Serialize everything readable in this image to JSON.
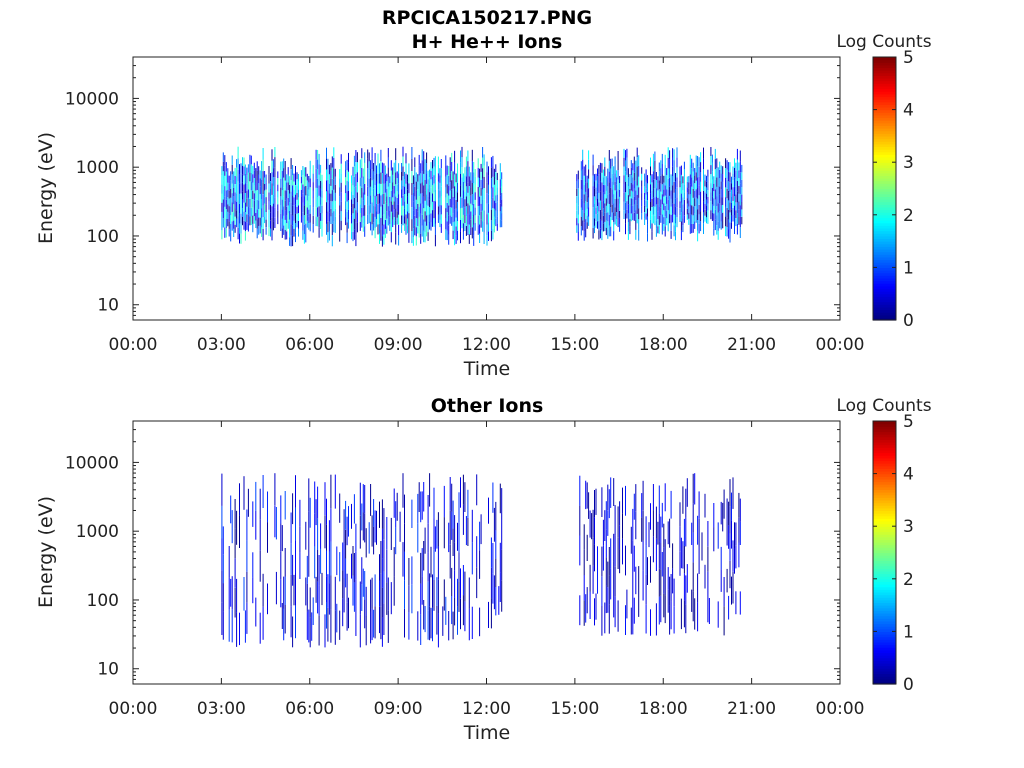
{
  "figure_title": "RPCICA150217.PNG",
  "chart_data": [
    {
      "type": "heatmap",
      "title": "H+ He++ Ions",
      "xlabel": "Time",
      "ylabel": "Energy (eV)",
      "xticks": [
        "00:00",
        "03:00",
        "06:00",
        "09:00",
        "12:00",
        "15:00",
        "18:00",
        "21:00",
        "00:00"
      ],
      "xlim_hours": [
        0,
        24
      ],
      "ylim": [
        6,
        40000
      ],
      "yscale": "log",
      "yticks": [
        10,
        100,
        1000,
        10000
      ],
      "ytick_labels": [
        "10",
        "100",
        "1000",
        "10000"
      ],
      "colorbar": {
        "label": "Log Counts",
        "range": [
          0,
          5
        ],
        "ticks": [
          "0",
          "1",
          "2",
          "3",
          "4",
          "5"
        ],
        "colormap": "jet"
      },
      "data_segments": [
        {
          "start_hour": 3.0,
          "end_hour": 12.55,
          "emin_eV": 70,
          "emax_eV": 2000,
          "peak_log_counts": 2.2
        },
        {
          "start_hour": 15.0,
          "end_hour": 20.7,
          "emin_eV": 80,
          "emax_eV": 2000,
          "peak_log_counts": 1.9
        }
      ]
    },
    {
      "type": "heatmap",
      "title": "Other Ions",
      "xlabel": "Time",
      "ylabel": "Energy (eV)",
      "xticks": [
        "00:00",
        "03:00",
        "06:00",
        "09:00",
        "12:00",
        "15:00",
        "18:00",
        "21:00",
        "00:00"
      ],
      "xlim_hours": [
        0,
        24
      ],
      "ylim": [
        6,
        40000
      ],
      "yscale": "log",
      "yticks": [
        10,
        100,
        1000,
        10000
      ],
      "ytick_labels": [
        "10",
        "100",
        "1000",
        "10000"
      ],
      "colorbar": {
        "label": "Log Counts",
        "range": [
          0,
          5
        ],
        "ticks": [
          "0",
          "1",
          "2",
          "3",
          "4",
          "5"
        ],
        "colormap": "jet"
      },
      "data_segments": [
        {
          "start_hour": 3.0,
          "end_hour": 12.55,
          "emin_eV": 20,
          "emax_eV": 7000,
          "peak_log_counts": 1.0
        },
        {
          "start_hour": 15.0,
          "end_hour": 20.7,
          "emin_eV": 30,
          "emax_eV": 7000,
          "peak_log_counts": 0.8
        }
      ]
    }
  ]
}
